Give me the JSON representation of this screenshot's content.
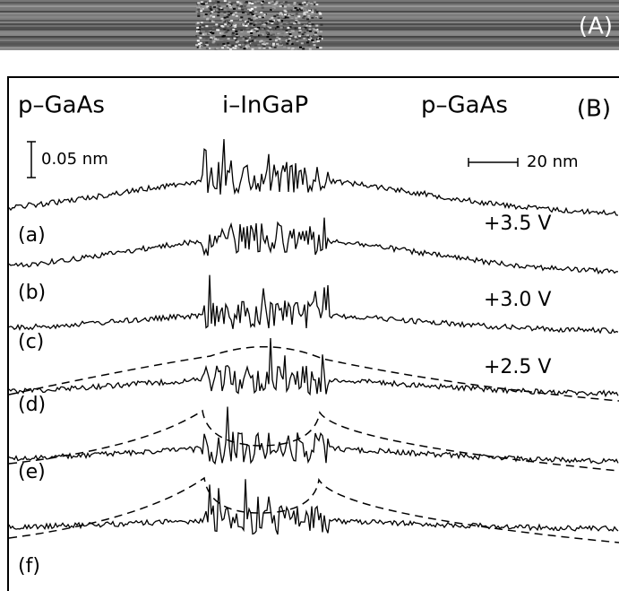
{
  "panel_a": {
    "label": "(A)"
  },
  "panel_b": {
    "label": "(B)",
    "regions": [
      "p–GaAs",
      "i–InGaP",
      "p–GaAs"
    ],
    "scale_bars": {
      "vertical": "0.05 nm",
      "horizontal": "20 nm"
    },
    "traces": [
      {
        "label": "(a)",
        "bias": "+3.5 V"
      },
      {
        "label": "(b)",
        "bias": "+3.0 V"
      },
      {
        "label": "(c)",
        "bias": "+2.5 V"
      },
      {
        "label": "(d)"
      },
      {
        "label": "(e)"
      },
      {
        "label": "(f)"
      }
    ]
  }
}
